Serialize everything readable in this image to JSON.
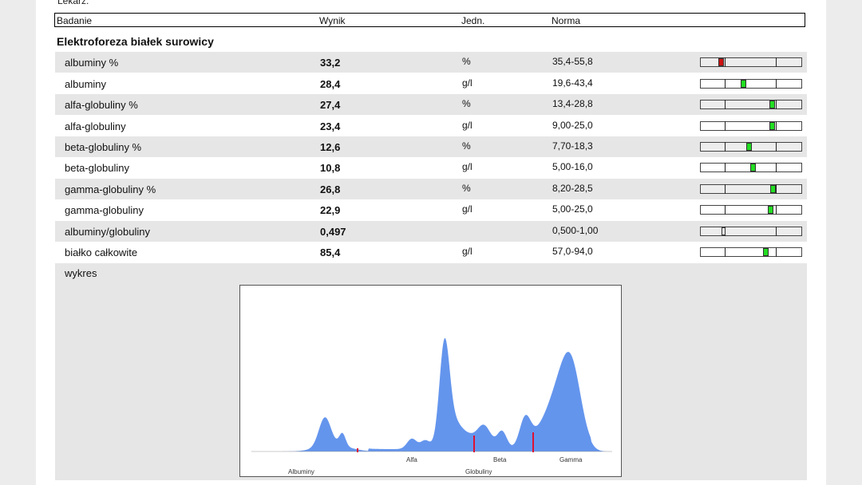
{
  "doctor_label": "Lekarz:",
  "header": {
    "col1": "Badanie",
    "col2": "Wynik",
    "col3": "Jedn.",
    "col4": "Norma"
  },
  "section_title": "Elektroforeza białek surowicy",
  "rows": [
    {
      "name": "albuminy %",
      "value": "33,2",
      "unit": "%",
      "norm": "35,4-55,8",
      "status": "low"
    },
    {
      "name": "albuminy",
      "value": "28,4",
      "unit": "g/l",
      "norm": "19,6-43,4",
      "status": "normal"
    },
    {
      "name": "alfa-globuliny %",
      "value": "27,4",
      "unit": "%",
      "norm": "13,4-28,8",
      "status": "normal"
    },
    {
      "name": "alfa-globuliny",
      "value": "23,4",
      "unit": "g/l",
      "norm": "9,00-25,0",
      "status": "normal"
    },
    {
      "name": "beta-globuliny %",
      "value": "12,6",
      "unit": "%",
      "norm": "7,70-18,3",
      "status": "normal"
    },
    {
      "name": "beta-globuliny",
      "value": "10,8",
      "unit": "g/l",
      "norm": "5,00-16,0",
      "status": "normal"
    },
    {
      "name": "gamma-globuliny %",
      "value": "26,8",
      "unit": "%",
      "norm": "8,20-28,5",
      "status": "normal"
    },
    {
      "name": "gamma-globuliny",
      "value": "22,9",
      "unit": "g/l",
      "norm": "5,00-25,0",
      "status": "normal"
    },
    {
      "name": "albuminy/globuliny",
      "value": "0,497",
      "unit": "",
      "norm": "0,500-1,00",
      "status": "low-border"
    },
    {
      "name": "białko całkowite",
      "value": "85,4",
      "unit": "g/l",
      "norm": "57,0-94,0",
      "status": "normal"
    }
  ],
  "chart": {
    "label": "wykres",
    "peak_labels": {
      "alfa": "Alfa",
      "beta": "Beta",
      "gamma": "Gamma"
    },
    "group_labels": {
      "albuminy": "Albuminy",
      "globuliny": "Globuliny"
    },
    "fill_color": "#6495ed",
    "separator_color": "#dd1133"
  },
  "colors": {
    "normal": "#22dd22",
    "low": "#cc1111",
    "border": "#e6e6e6"
  }
}
